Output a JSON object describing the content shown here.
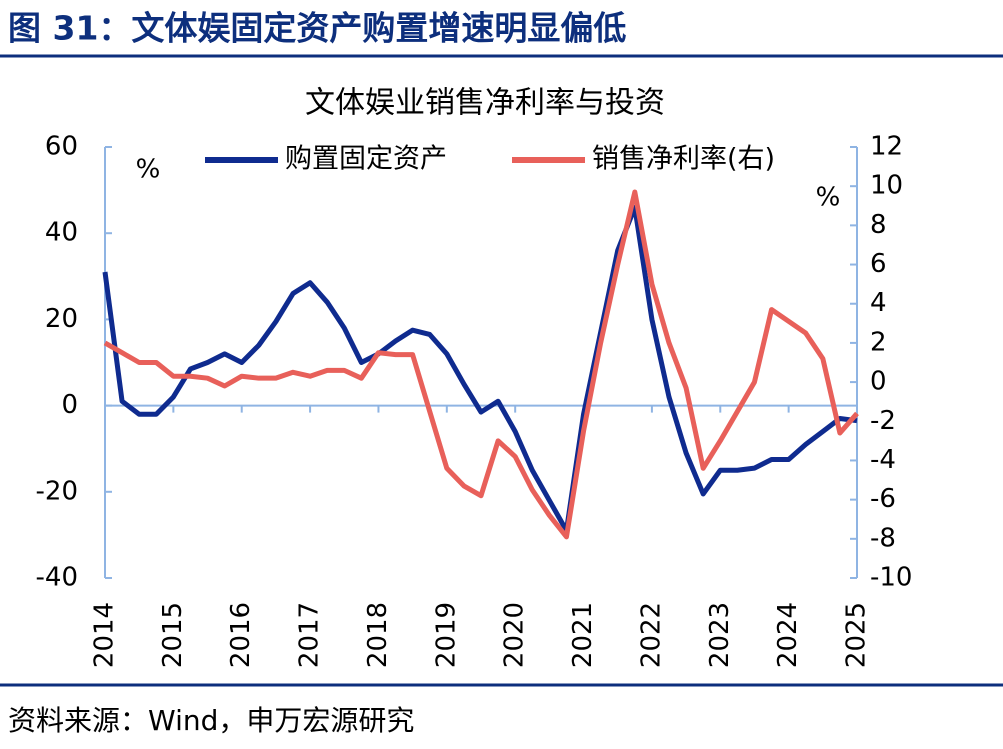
{
  "header": {
    "title": "图 31：文体娱固定资产购置增速明显偏低"
  },
  "chart_data": {
    "type": "line",
    "title": "文体娱业销售净利率与投资",
    "y_unit": "%",
    "y2_unit": "%",
    "xlim": [
      2014,
      2025
    ],
    "xticks": [
      2014,
      2015,
      2016,
      2017,
      2018,
      2019,
      2020,
      2021,
      2022,
      2023,
      2024,
      2025
    ],
    "ylim": [
      -40,
      60
    ],
    "yticks": [
      -40,
      -20,
      0,
      20,
      40,
      60
    ],
    "y2lim": [
      -10,
      12
    ],
    "y2ticks": [
      -10,
      -8,
      -6,
      -4,
      -2,
      0,
      2,
      4,
      6,
      8,
      10,
      12
    ],
    "x": [
      2014,
      2014.25,
      2014.5,
      2014.75,
      2015,
      2015.25,
      2015.5,
      2015.75,
      2016,
      2016.25,
      2016.5,
      2016.75,
      2017,
      2017.25,
      2017.5,
      2017.75,
      2018,
      2018.25,
      2018.5,
      2018.75,
      2019,
      2019.25,
      2019.5,
      2019.75,
      2020,
      2020.25,
      2020.5,
      2020.75,
      2021,
      2021.25,
      2021.5,
      2021.75,
      2022,
      2022.25,
      2022.5,
      2022.75,
      2023,
      2023.25,
      2023.5,
      2023.75,
      2024,
      2024.25,
      2024.5,
      2024.75,
      2025
    ],
    "series": [
      {
        "name": "购置固定资产",
        "color": "#0f2b8f",
        "values": [
          31,
          1,
          -2,
          -2,
          2,
          8.5,
          10,
          12,
          10,
          14,
          19.5,
          26,
          28.5,
          24,
          18,
          10,
          12,
          15,
          17.5,
          16.5,
          12,
          5,
          -1.5,
          1,
          -6,
          -15,
          -22,
          -29,
          -2,
          17,
          36,
          46,
          20,
          2,
          -11,
          -20.5,
          -15,
          -15,
          -14.5,
          -12.5,
          -12.5,
          -9,
          -6,
          -3,
          -3.5
        ]
      },
      {
        "name": "销售净利率(右)",
        "color": "#e8605a",
        "axis": "y2",
        "values": [
          2,
          1.5,
          1,
          1,
          0.3,
          0.3,
          0.2,
          -0.2,
          0.3,
          0.2,
          0.2,
          0.5,
          0.3,
          0.6,
          0.6,
          0.2,
          1.5,
          1.4,
          1.4,
          -1.5,
          -4.4,
          -5.3,
          -5.8,
          -3,
          -3.8,
          -5.5,
          -6.8,
          -7.9,
          -2.5,
          2,
          6,
          9.7,
          5,
          2,
          -0.3,
          -4.4,
          -3,
          -1.5,
          0,
          3.7,
          3.1,
          2.5,
          1.2,
          -2.6,
          -1.6
        ]
      }
    ]
  },
  "footer": {
    "source": "资料来源：Wind，申万宏源研究"
  }
}
